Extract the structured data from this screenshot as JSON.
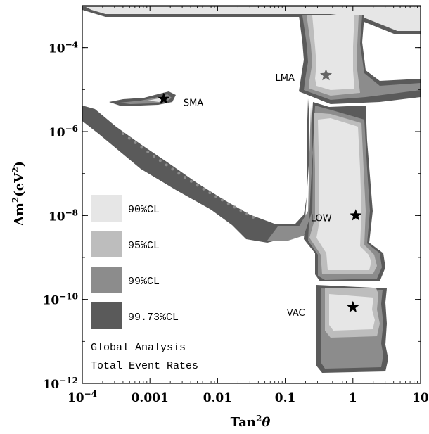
{
  "chart_data": {
    "type": "contour",
    "xlabel": "Tan²θ",
    "ylabel": "Δm²(eV²)",
    "x_scale": "log",
    "y_scale": "log",
    "xlim": [
      0.0001,
      10
    ],
    "ylim": [
      1e-12,
      0.001
    ],
    "x_ticks": [
      {
        "value": 0.0001,
        "label": "10",
        "exp": "−4"
      },
      {
        "value": 0.001,
        "label": "0.001"
      },
      {
        "value": 0.01,
        "label": "0.01"
      },
      {
        "value": 0.1,
        "label": "0.1"
      },
      {
        "value": 1,
        "label": "1"
      },
      {
        "value": 10,
        "label": "10"
      }
    ],
    "y_ticks": [
      {
        "value": 1e-12,
        "label": "10",
        "exp": "−12"
      },
      {
        "value": 1e-10,
        "label": "10",
        "exp": "−10"
      },
      {
        "value": 1e-08,
        "label": "10",
        "exp": "−8"
      },
      {
        "value": 1e-06,
        "label": "10",
        "exp": "−6"
      },
      {
        "value": 0.0001,
        "label": "10",
        "exp": "−4"
      }
    ],
    "legend": [
      {
        "label": "90%CL",
        "color": "#e6e6e6"
      },
      {
        "label": "95%CL",
        "color": "#bdbdbd"
      },
      {
        "label": "99%CL",
        "color": "#8c8c8c"
      },
      {
        "label": "99.73%CL",
        "color": "#5a5a5a"
      }
    ],
    "legend_position": "lower-left",
    "annotation_lines": [
      "Global Analysis",
      "Total Event Rates"
    ],
    "best_fit_points": [
      {
        "name": "LMA",
        "x": 0.4,
        "y": 2.2e-05,
        "star_color": "#666666"
      },
      {
        "name": "SMA",
        "x": 0.0016,
        "y": 6e-06,
        "star_color": "#000000"
      },
      {
        "name": "LOW",
        "x": 1.1,
        "y": 1e-08,
        "star_color": "#000000"
      },
      {
        "name": "VAC",
        "x": 1.0,
        "y": 6.5e-11,
        "star_color": "#000000"
      }
    ],
    "grid": false
  }
}
